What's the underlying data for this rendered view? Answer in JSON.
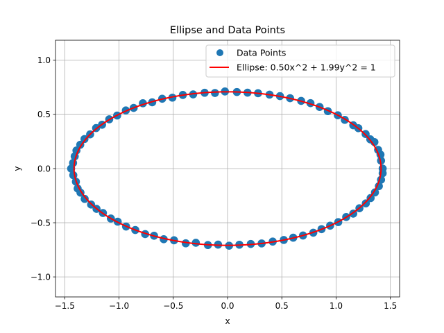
{
  "chart_data": {
    "type": "scatter",
    "title": "Ellipse and Data Points",
    "xlabel": "x",
    "ylabel": "y",
    "xlim": [
      -1.585,
      1.585
    ],
    "ylim": [
      -1.185,
      1.185
    ],
    "xticks": [
      -1.5,
      -1.0,
      -0.5,
      0.0,
      0.5,
      1.0,
      1.5
    ],
    "xtick_labels": [
      "−1.5",
      "−1.0",
      "−0.5",
      "0.0",
      "0.5",
      "1.0",
      "1.5"
    ],
    "yticks": [
      -1.0,
      -0.5,
      0.0,
      0.5,
      1.0
    ],
    "ytick_labels": [
      "−1.0",
      "−0.5",
      "0.0",
      "0.5",
      "1.0"
    ],
    "grid": true,
    "legend_position": "upper right",
    "series": [
      {
        "name": "Data Points",
        "kind": "scatter",
        "color": "#1f77b4",
        "points": [
          [
            1.429,
            0.0
          ],
          [
            1.414,
            0.073
          ],
          [
            1.409,
            0.129
          ],
          [
            1.387,
            0.173
          ],
          [
            1.353,
            0.245
          ],
          [
            1.315,
            0.27
          ],
          [
            1.272,
            0.319
          ],
          [
            1.205,
            0.373
          ],
          [
            1.158,
            0.4
          ],
          [
            1.08,
            0.45
          ],
          [
            1.016,
            0.492
          ],
          [
            0.924,
            0.53
          ],
          [
            0.848,
            0.569
          ],
          [
            0.764,
            0.604
          ],
          [
            0.678,
            0.625
          ],
          [
            0.576,
            0.65
          ],
          [
            0.483,
            0.669
          ],
          [
            0.387,
            0.683
          ],
          [
            0.281,
            0.696
          ],
          [
            0.184,
            0.701
          ],
          [
            0.086,
            0.707
          ],
          [
            -0.024,
            0.712
          ],
          [
            -0.116,
            0.698
          ],
          [
            -0.211,
            0.7
          ],
          [
            -0.317,
            0.685
          ],
          [
            -0.412,
            0.68
          ],
          [
            -0.508,
            0.655
          ],
          [
            -0.602,
            0.645
          ],
          [
            -0.694,
            0.612
          ],
          [
            -0.78,
            0.603
          ],
          [
            -0.865,
            0.56
          ],
          [
            -0.937,
            0.537
          ],
          [
            -1.017,
            0.49
          ],
          [
            -1.09,
            0.455
          ],
          [
            -1.156,
            0.405
          ],
          [
            -1.211,
            0.374
          ],
          [
            -1.266,
            0.316
          ],
          [
            -1.318,
            0.273
          ],
          [
            -1.357,
            0.22
          ],
          [
            -1.392,
            0.167
          ],
          [
            -1.408,
            0.113
          ],
          [
            -1.423,
            0.052
          ],
          [
            -1.441,
            0.0
          ],
          [
            -1.421,
            -0.061
          ],
          [
            -1.397,
            -0.121
          ],
          [
            -1.381,
            -0.184
          ],
          [
            -1.355,
            -0.222
          ],
          [
            -1.316,
            -0.28
          ],
          [
            -1.257,
            -0.332
          ],
          [
            -1.207,
            -0.372
          ],
          [
            -1.148,
            -0.41
          ],
          [
            -1.075,
            -0.461
          ],
          [
            -1.012,
            -0.49
          ],
          [
            -0.935,
            -0.535
          ],
          [
            -0.85,
            -0.567
          ],
          [
            -0.759,
            -0.605
          ],
          [
            -0.677,
            -0.62
          ],
          [
            -0.588,
            -0.652
          ],
          [
            -0.493,
            -0.662
          ],
          [
            -0.385,
            -0.69
          ],
          [
            -0.292,
            -0.685
          ],
          [
            -0.181,
            -0.706
          ],
          [
            -0.087,
            -0.702
          ],
          [
            0.014,
            -0.712
          ],
          [
            0.109,
            -0.703
          ],
          [
            0.214,
            -0.696
          ],
          [
            0.314,
            -0.691
          ],
          [
            0.416,
            -0.674
          ],
          [
            0.518,
            -0.659
          ],
          [
            0.605,
            -0.638
          ],
          [
            0.695,
            -0.618
          ],
          [
            0.79,
            -0.592
          ],
          [
            0.866,
            -0.559
          ],
          [
            0.945,
            -0.527
          ],
          [
            1.02,
            -0.494
          ],
          [
            1.093,
            -0.447
          ],
          [
            1.158,
            -0.416
          ],
          [
            1.215,
            -0.366
          ],
          [
            1.274,
            -0.321
          ],
          [
            1.318,
            -0.272
          ],
          [
            1.358,
            -0.22
          ],
          [
            1.394,
            -0.162
          ],
          [
            1.414,
            -0.103
          ],
          [
            1.429,
            -0.043
          ]
        ]
      },
      {
        "name": "Ellipse: 0.50x^2 + 1.99y^2 = 1",
        "kind": "line",
        "color": "#ff0000",
        "a": 0.5,
        "b": 1.99
      }
    ]
  }
}
